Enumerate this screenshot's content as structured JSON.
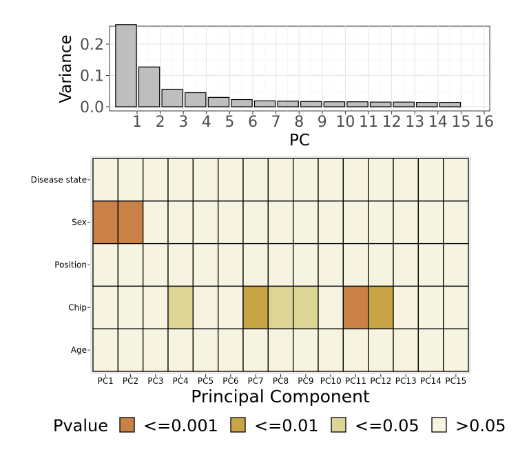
{
  "chart_data": [
    {
      "type": "bar",
      "xlabel": "PC",
      "ylabel": "Variance",
      "categories": [
        "1",
        "2",
        "3",
        "4",
        "5",
        "6",
        "7",
        "8",
        "9",
        "10",
        "11",
        "12",
        "13",
        "14",
        "15"
      ],
      "x_ticks": [
        "1",
        "2",
        "3",
        "4",
        "5",
        "6",
        "7",
        "8",
        "9",
        "10",
        "11",
        "12",
        "13",
        "14",
        "15",
        "16"
      ],
      "values": [
        0.262,
        0.127,
        0.056,
        0.045,
        0.03,
        0.023,
        0.019,
        0.018,
        0.017,
        0.016,
        0.016,
        0.015,
        0.015,
        0.014,
        0.014
      ],
      "ylim": [
        0,
        0.27
      ],
      "y_ticks": [
        "0.0",
        "0.1",
        "0.2"
      ],
      "grid": true,
      "colors": {
        "bar_fill": "#bebebe",
        "bar_stroke": "#000000"
      }
    },
    {
      "type": "heatmap",
      "xlabel": "Principal Component",
      "columns": [
        "PC1",
        "PC2",
        "PC3",
        "PC4",
        "PC5",
        "PC6",
        "PC7",
        "PC8",
        "PC9",
        "PC10",
        "PC11",
        "PC12",
        "PC13",
        "PC14",
        "PC15"
      ],
      "rows": [
        "Disease state",
        "Sex",
        "Position",
        "Chip",
        "Age"
      ],
      "values": [
        [
          ">0.05",
          ">0.05",
          ">0.05",
          ">0.05",
          ">0.05",
          ">0.05",
          ">0.05",
          ">0.05",
          ">0.05",
          ">0.05",
          ">0.05",
          ">0.05",
          ">0.05",
          ">0.05",
          ">0.05"
        ],
        [
          "<=0.001",
          "<=0.001",
          ">0.05",
          ">0.05",
          ">0.05",
          ">0.05",
          ">0.05",
          ">0.05",
          ">0.05",
          ">0.05",
          ">0.05",
          ">0.05",
          ">0.05",
          ">0.05",
          ">0.05"
        ],
        [
          ">0.05",
          ">0.05",
          ">0.05",
          ">0.05",
          ">0.05",
          ">0.05",
          ">0.05",
          ">0.05",
          ">0.05",
          ">0.05",
          ">0.05",
          ">0.05",
          ">0.05",
          ">0.05",
          ">0.05"
        ],
        [
          ">0.05",
          ">0.05",
          ">0.05",
          "<=0.05",
          ">0.05",
          ">0.05",
          "<=0.01",
          "<=0.05",
          "<=0.05",
          ">0.05",
          "<=0.001",
          "<=0.01",
          ">0.05",
          ">0.05",
          ">0.05"
        ],
        [
          ">0.05",
          ">0.05",
          ">0.05",
          ">0.05",
          ">0.05",
          ">0.05",
          ">0.05",
          ">0.05",
          ">0.05",
          ">0.05",
          ">0.05",
          ">0.05",
          ">0.05",
          ">0.05",
          ">0.05"
        ]
      ],
      "legend": {
        "title": "Pvalue",
        "placement": "bottom",
        "items": [
          {
            "label": "<=0.001",
            "color": "#c98146"
          },
          {
            "label": "<=0.01",
            "color": "#c9a444"
          },
          {
            "label": "<=0.05",
            "color": "#ddd595"
          },
          {
            "label": ">0.05",
            "color": "#f6f3e0"
          }
        ]
      }
    }
  ]
}
